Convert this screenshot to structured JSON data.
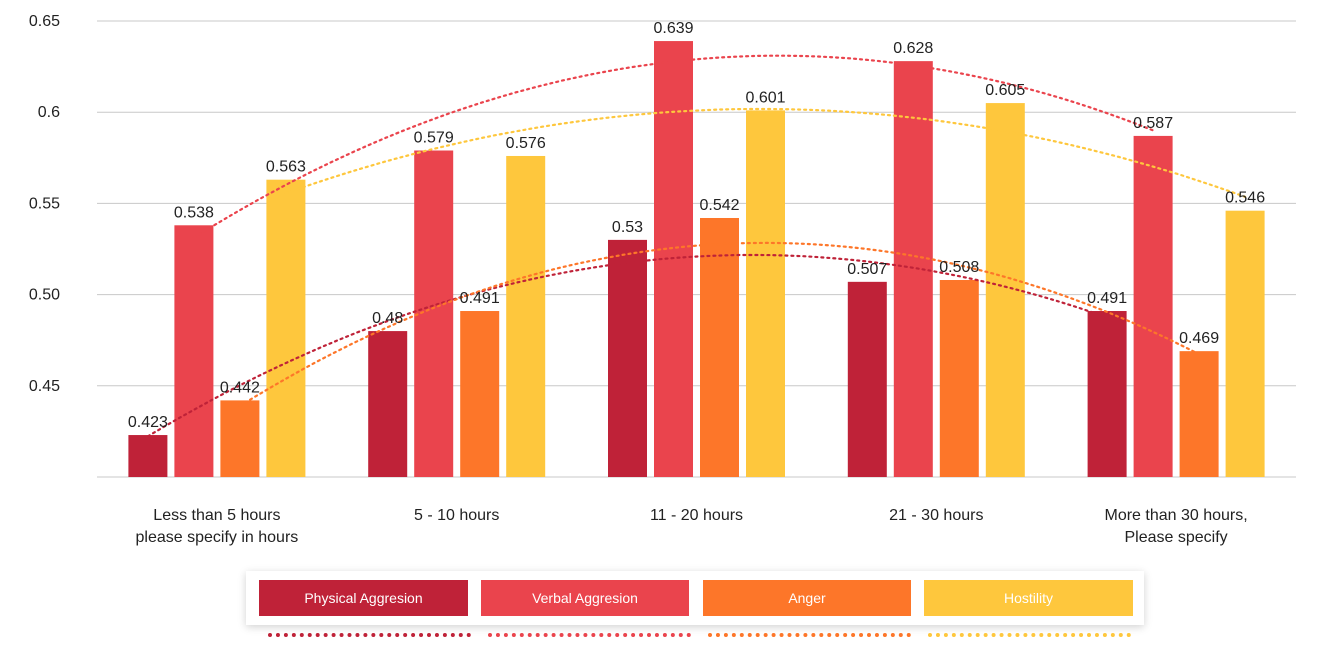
{
  "chart_data": {
    "type": "bar",
    "categories": [
      [
        "Less than 5 hours",
        "please specify in hours"
      ],
      [
        "5 - 10 hours"
      ],
      [
        "11 - 20 hours"
      ],
      [
        "21 - 30 hours"
      ],
      [
        "More than 30 hours,",
        "Please specify"
      ]
    ],
    "series": [
      {
        "name": "Physical Aggresion",
        "color": "#bf2238",
        "values": [
          0.423,
          0.48,
          0.53,
          0.507,
          0.491
        ]
      },
      {
        "name": "Verbal Aggresion",
        "color": "#ea444d",
        "values": [
          0.538,
          0.579,
          0.639,
          0.628,
          0.587
        ]
      },
      {
        "name": "Anger",
        "color": "#fd7629",
        "values": [
          0.442,
          0.491,
          0.542,
          0.508,
          0.469
        ]
      },
      {
        "name": "Hostility",
        "color": "#fec73d",
        "values": [
          0.563,
          0.576,
          0.601,
          0.605,
          0.546
        ]
      }
    ],
    "y_ticks": [
      "0.65",
      "0.6",
      "0.55",
      "0.50",
      "0.45"
    ],
    "y_tick_values": [
      0.65,
      0.6,
      0.55,
      0.5,
      0.45
    ],
    "ylim": [
      0.4,
      0.65
    ],
    "trendlines": "polynomial, dotted, one per series",
    "grid": true,
    "legend_position": "bottom"
  }
}
